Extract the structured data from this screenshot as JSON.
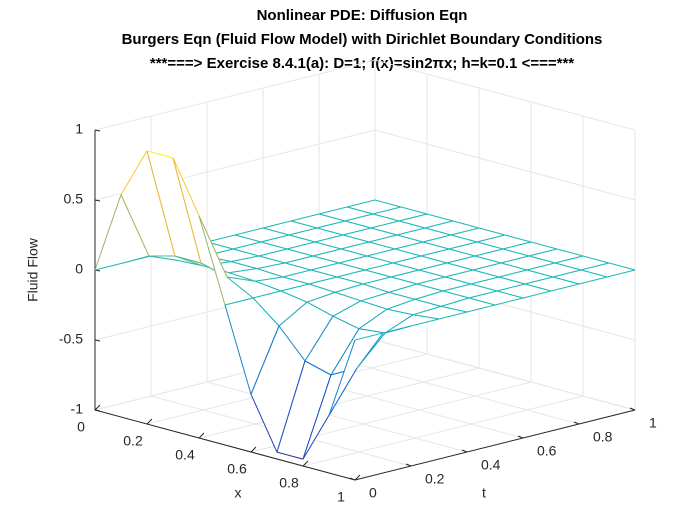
{
  "chart_data": {
    "type": "mesh",
    "title": [
      "Nonlinear PDE:  Diffusion Eqn",
      "Burgers Eqn (Fluid Flow Model) with Dirichlet Boundary Conditions",
      "***===> Exercise 8.4.1(a):  D=1; f(x)=sin2πx; h=k=0.1 <===***"
    ],
    "xlabel": "x",
    "ylabel": "t",
    "zlabel": "Fluid Flow",
    "x": [
      0,
      0.1,
      0.2,
      0.3,
      0.4,
      0.5,
      0.6,
      0.7,
      0.8,
      0.9,
      1
    ],
    "y": [
      0,
      0.1,
      0.2,
      0.3,
      0.4,
      0.5,
      0.6,
      0.7,
      0.8,
      0.9,
      1
    ],
    "z": [
      [
        0,
        0.5878,
        0.9511,
        0.9511,
        0.5878,
        0,
        -0.5878,
        -0.9511,
        -0.9511,
        -0.5878,
        0
      ],
      [
        0,
        0.1,
        0.15,
        0.15,
        0.1,
        0,
        -0.15,
        -0.35,
        -0.4,
        -0.3,
        0
      ],
      [
        0,
        0.02,
        0.03,
        0.03,
        0.02,
        0,
        -0.03,
        -0.08,
        -0.12,
        -0.1,
        0
      ],
      [
        0,
        0,
        0.01,
        0.01,
        0,
        0,
        -0.01,
        -0.02,
        -0.03,
        -0.02,
        0
      ],
      [
        0,
        0,
        0,
        0,
        0,
        0,
        0,
        -0.01,
        -0.01,
        -0.01,
        0
      ],
      [
        0,
        0,
        0,
        0,
        0,
        0,
        0,
        0,
        0,
        0,
        0
      ],
      [
        0,
        0,
        0,
        0,
        0,
        0,
        0,
        0,
        0,
        0,
        0
      ],
      [
        0,
        0,
        0,
        0,
        0,
        0,
        0,
        0,
        0,
        0,
        0
      ],
      [
        0,
        0,
        0,
        0,
        0,
        0,
        0,
        0,
        0,
        0,
        0
      ],
      [
        0,
        0,
        0,
        0,
        0,
        0,
        0,
        0,
        0,
        0,
        0
      ],
      [
        0,
        0,
        0,
        0,
        0,
        0,
        0,
        0,
        0,
        0,
        0
      ]
    ],
    "xlim": [
      0,
      1
    ],
    "ylim": [
      0,
      1
    ],
    "zlim": [
      -1,
      1
    ],
    "xticks": [
      0,
      0.2,
      0.4,
      0.6,
      0.8,
      1
    ],
    "yticks": [
      0,
      0.2,
      0.4,
      0.6,
      0.8,
      1
    ],
    "zticks": [
      -1,
      -0.5,
      0,
      0.5,
      1
    ],
    "grid": true
  }
}
